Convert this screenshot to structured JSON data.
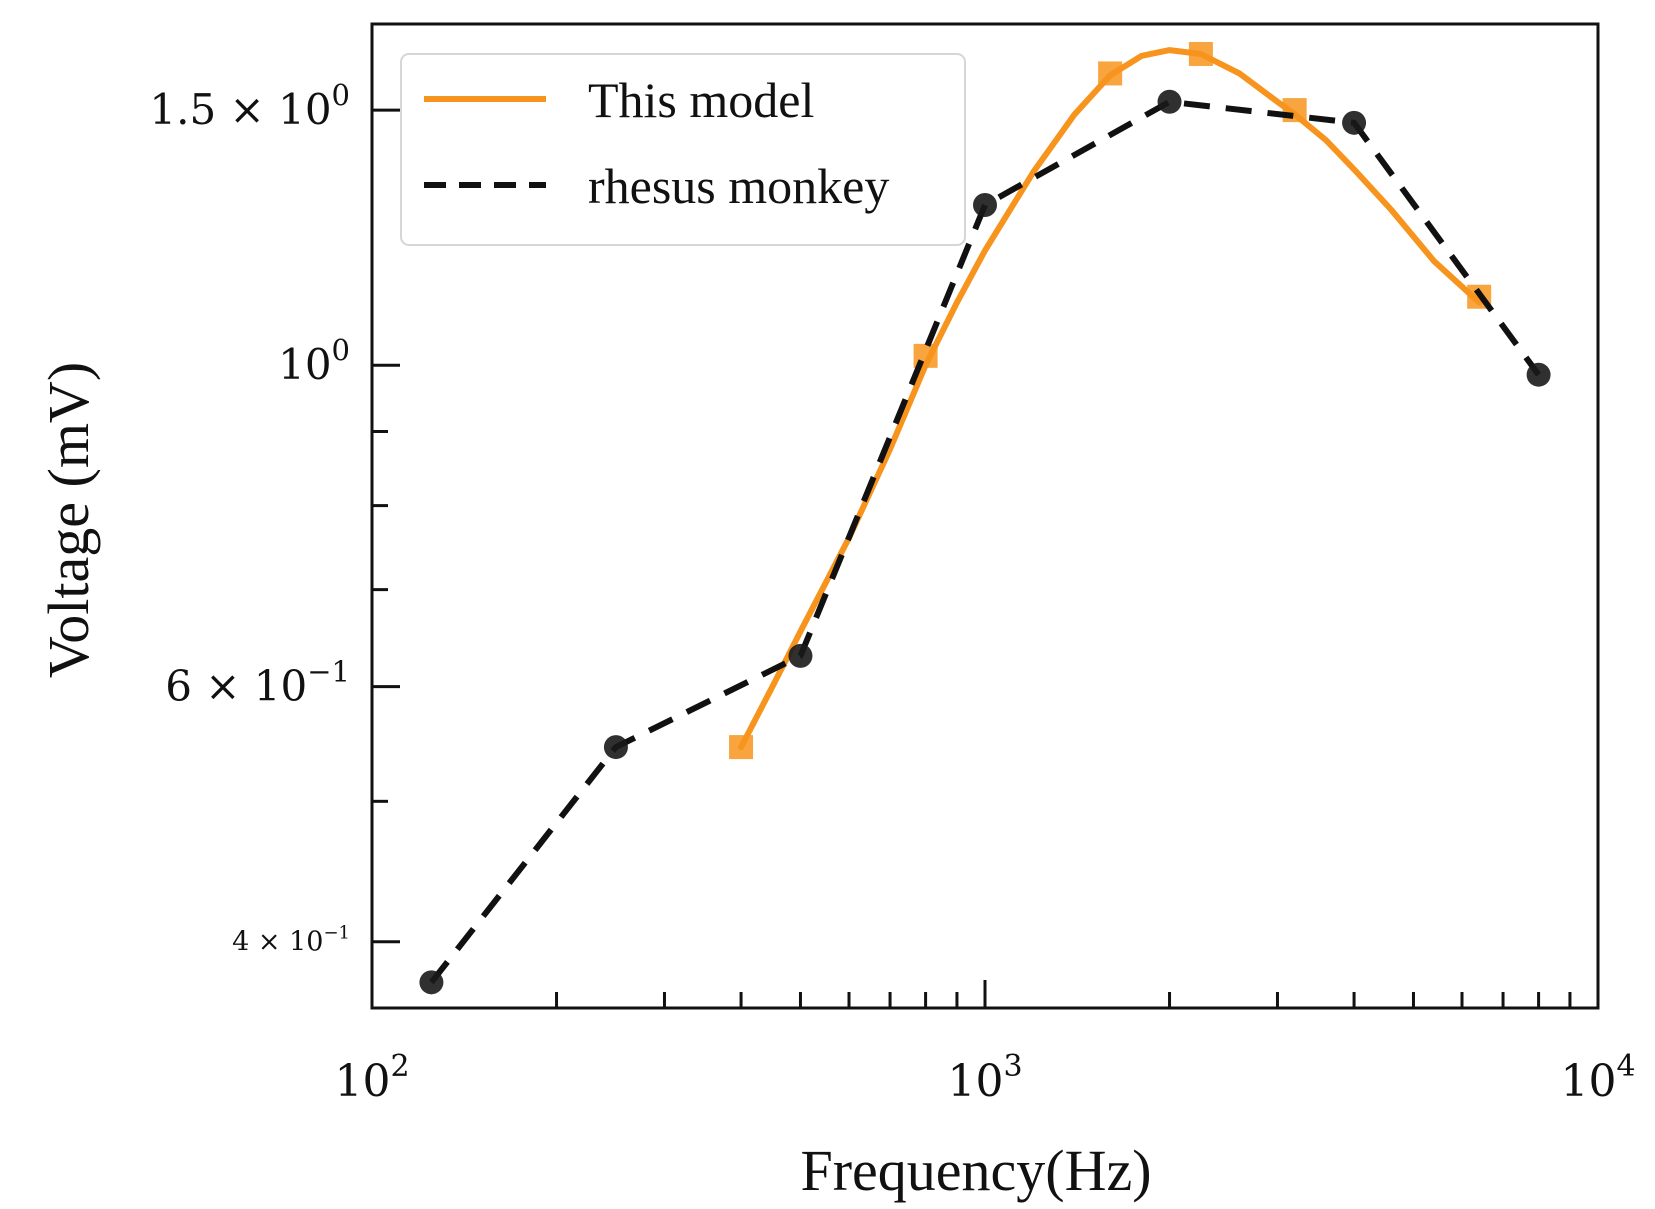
{
  "chart_data": {
    "type": "line",
    "xlabel": "Frequency(Hz)",
    "ylabel": "Voltage (mV)",
    "xscale": "log",
    "yscale": "log",
    "xlim": [
      100,
      10000
    ],
    "ylim": [
      0.36,
      1.72
    ],
    "x_ticks": [
      {
        "base": "10",
        "exp": "2",
        "value": 100
      },
      {
        "base": "10",
        "exp": "3",
        "value": 1000
      },
      {
        "base": "10",
        "exp": "4",
        "value": 10000
      }
    ],
    "y_ticks": [
      {
        "mant": "4 × ",
        "base": "10",
        "exp": "−1",
        "value": 0.4,
        "size": "small"
      },
      {
        "mant": "6 × ",
        "base": "10",
        "exp": "−1",
        "value": 0.6,
        "size": "large"
      },
      {
        "mant": "",
        "base": "10",
        "exp": "0",
        "value": 1.0,
        "size": "large"
      },
      {
        "mant": "1.5 × ",
        "base": "10",
        "exp": "0",
        "value": 1.5,
        "size": "large"
      }
    ],
    "y_minor_ticks": [
      0.5,
      0.7,
      0.8,
      0.9
    ],
    "legend_position": "top-left",
    "series": [
      {
        "name": "This model",
        "color": "#f7941d",
        "style": "solid",
        "marker": "square",
        "x": [
          400,
          800,
          1600,
          2250,
          3200,
          6400
        ],
        "y": [
          0.545,
          1.015,
          1.59,
          1.64,
          1.5,
          1.115
        ],
        "curve_x": [
          400,
          450,
          500,
          600,
          700,
          800,
          900,
          1000,
          1200,
          1400,
          1600,
          1800,
          2000,
          2250,
          2600,
          3000,
          3200,
          3600,
          4000,
          4600,
          5400,
          6400
        ],
        "curve_y": [
          0.545,
          0.6,
          0.655,
          0.76,
          0.875,
          1.0,
          1.105,
          1.2,
          1.36,
          1.49,
          1.585,
          1.635,
          1.65,
          1.64,
          1.59,
          1.52,
          1.49,
          1.43,
          1.365,
          1.28,
          1.18,
          1.105
        ]
      },
      {
        "name": "rhesus monkey",
        "color": "#111111",
        "style": "dashed",
        "marker": "circle",
        "x": [
          125,
          250,
          500,
          1000,
          2000,
          4000,
          8000
        ],
        "y": [
          0.375,
          0.545,
          0.63,
          1.29,
          1.52,
          1.47,
          0.985
        ]
      }
    ]
  }
}
